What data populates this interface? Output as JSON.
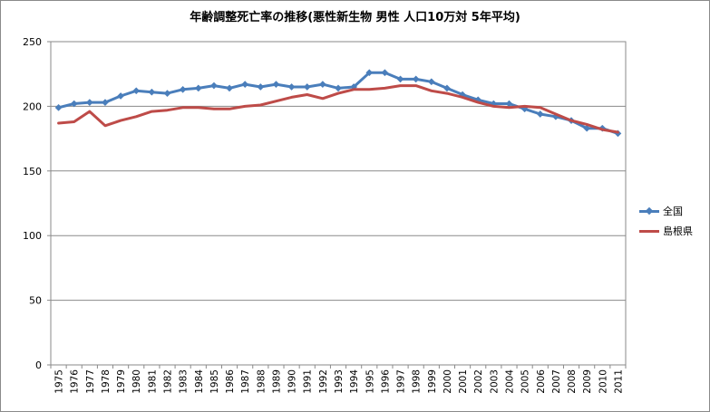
{
  "chart_data": {
    "type": "line",
    "title": "年齢調整死亡率の推移(悪性新生物 男性 人口10万対 5年平均)",
    "xlabel": "",
    "ylabel": "",
    "ylim": [
      0,
      250
    ],
    "yticks": [
      0,
      50,
      100,
      150,
      200,
      250
    ],
    "grid": "horizontal",
    "legend": "right",
    "x": [
      "1975",
      "1976",
      "1977",
      "1978",
      "1979",
      "1980",
      "1981",
      "1982",
      "1983",
      "1984",
      "1985",
      "1986",
      "1987",
      "1988",
      "1989",
      "1990",
      "1991",
      "1992",
      "1993",
      "1994",
      "1995",
      "1996",
      "1997",
      "1998",
      "1999",
      "2000",
      "2001",
      "2002",
      "2003",
      "2004",
      "2005",
      "2006",
      "2007",
      "2008",
      "2009",
      "2010",
      "2011"
    ],
    "series": [
      {
        "name": "全国",
        "color": "#4a7ebb",
        "marker": "diamond",
        "values": [
          199,
          202,
          203,
          203,
          208,
          212,
          211,
          210,
          213,
          214,
          216,
          214,
          217,
          215,
          217,
          215,
          215,
          217,
          214,
          215,
          226,
          226,
          221,
          221,
          219,
          214,
          209,
          205,
          202,
          202,
          198,
          194,
          192,
          189,
          183,
          183,
          179
        ]
      },
      {
        "name": "島根県",
        "color": "#be4b48",
        "marker": "none",
        "values": [
          187,
          188,
          196,
          185,
          189,
          192,
          196,
          197,
          199,
          199,
          198,
          198,
          200,
          201,
          204,
          207,
          209,
          206,
          210,
          213,
          213,
          214,
          216,
          216,
          212,
          210,
          207,
          203,
          200,
          199,
          200,
          199,
          194,
          189,
          186,
          182,
          180
        ]
      }
    ]
  }
}
